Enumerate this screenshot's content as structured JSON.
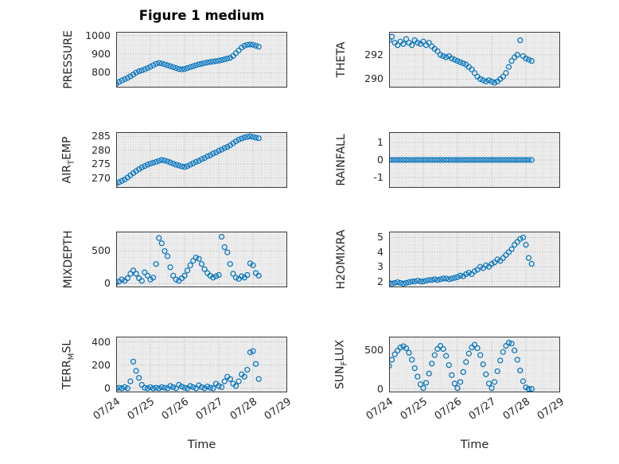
{
  "figure": {
    "title": "Figure 1 medium",
    "xlabel": "Time",
    "colors": {
      "marker": "#0072BD",
      "panel_bg": "#ececec",
      "minor_grid": "#d6d6d6",
      "major_grid": "#b0b0b0",
      "axis": "#3b3b3b",
      "text": "#262626"
    }
  },
  "chart_data": [
    {
      "type": "scatter",
      "name": "pressure",
      "ylabel": "PRESSURE",
      "ylabel_parts": [
        {
          "t": "PRESSURE",
          "sub": false
        }
      ],
      "xlim": [
        0,
        5
      ],
      "ylim": [
        720,
        1020
      ],
      "xticks": [
        0,
        1,
        2,
        3,
        4,
        5
      ],
      "xtick_labels": [
        "07/24",
        "07/25",
        "07/26",
        "07/27",
        "07/28",
        "07/29"
      ],
      "yticks": [
        800,
        900,
        1000
      ],
      "minor_x_step": 0.25,
      "minor_y_step": 25,
      "show_xtick_labels": false,
      "x": [
        0,
        0.083,
        0.167,
        0.25,
        0.333,
        0.417,
        0.5,
        0.583,
        0.667,
        0.75,
        0.833,
        0.917,
        1,
        1.083,
        1.167,
        1.25,
        1.333,
        1.417,
        1.5,
        1.583,
        1.667,
        1.75,
        1.833,
        1.917,
        2,
        2.083,
        2.167,
        2.25,
        2.333,
        2.417,
        2.5,
        2.583,
        2.667,
        2.75,
        2.833,
        2.917,
        3,
        3.083,
        3.167,
        3.25,
        3.333,
        3.417,
        3.5,
        3.583,
        3.667,
        3.75,
        3.833,
        3.917,
        4,
        4.083,
        4.167
      ],
      "y": [
        740,
        750,
        758,
        765,
        772,
        780,
        790,
        800,
        808,
        812,
        818,
        825,
        832,
        840,
        848,
        852,
        850,
        845,
        840,
        835,
        830,
        825,
        820,
        818,
        820,
        825,
        830,
        835,
        840,
        845,
        848,
        852,
        855,
        858,
        860,
        862,
        865,
        868,
        872,
        876,
        880,
        890,
        905,
        920,
        935,
        945,
        950,
        952,
        950,
        945,
        940
      ]
    },
    {
      "type": "scatter",
      "name": "theta",
      "ylabel": "THETA",
      "ylabel_parts": [
        {
          "t": "THETA",
          "sub": false
        }
      ],
      "xlim": [
        0,
        5
      ],
      "ylim": [
        289.3,
        293.9
      ],
      "xticks": [
        0,
        1,
        2,
        3,
        4,
        5
      ],
      "xtick_labels": [
        "07/24",
        "07/25",
        "07/26",
        "07/27",
        "07/28",
        "07/29"
      ],
      "yticks": [
        290,
        292
      ],
      "minor_x_step": 0.25,
      "minor_y_step": 0.5,
      "show_xtick_labels": false,
      "x": [
        0,
        0.083,
        0.167,
        0.25,
        0.333,
        0.417,
        0.5,
        0.583,
        0.667,
        0.75,
        0.833,
        0.917,
        1,
        1.083,
        1.167,
        1.25,
        1.333,
        1.417,
        1.5,
        1.583,
        1.667,
        1.75,
        1.833,
        1.917,
        2,
        2.083,
        2.167,
        2.25,
        2.333,
        2.417,
        2.5,
        2.583,
        2.667,
        2.75,
        2.833,
        2.917,
        3,
        3.083,
        3.167,
        3.25,
        3.333,
        3.417,
        3.5,
        3.583,
        3.667,
        3.75,
        3.833,
        3.917,
        4,
        4.083,
        4.167
      ],
      "y": [
        293.2,
        293.5,
        293,
        292.8,
        293.1,
        292.9,
        293.3,
        293,
        292.8,
        293.2,
        293,
        292.9,
        293.1,
        292.8,
        293,
        292.7,
        292.5,
        292.3,
        292,
        291.9,
        291.8,
        291.9,
        291.7,
        291.6,
        291.5,
        291.4,
        291.3,
        291.2,
        291,
        290.8,
        290.5,
        290.2,
        290,
        289.9,
        289.8,
        289.9,
        289.8,
        289.7,
        289.8,
        290,
        290.2,
        290.5,
        291,
        291.5,
        291.8,
        292,
        293.2,
        291.9,
        291.7,
        291.6,
        291.5
      ]
    },
    {
      "type": "scatter",
      "name": "air_temp",
      "ylabel": "AIR_TEMP",
      "ylabel_parts": [
        {
          "t": "AIR",
          "sub": false
        },
        {
          "t": "T",
          "sub": true
        },
        {
          "t": "EMP",
          "sub": false
        }
      ],
      "xlim": [
        0,
        5
      ],
      "ylim": [
        266.5,
        286.5
      ],
      "xticks": [
        0,
        1,
        2,
        3,
        4,
        5
      ],
      "xtick_labels": [
        "07/24",
        "07/25",
        "07/26",
        "07/27",
        "07/28",
        "07/29"
      ],
      "yticks": [
        270,
        275,
        280,
        285
      ],
      "minor_x_step": 0.25,
      "minor_y_step": 1,
      "show_xtick_labels": false,
      "x": [
        0,
        0.083,
        0.167,
        0.25,
        0.333,
        0.417,
        0.5,
        0.583,
        0.667,
        0.75,
        0.833,
        0.917,
        1,
        1.083,
        1.167,
        1.25,
        1.333,
        1.417,
        1.5,
        1.583,
        1.667,
        1.75,
        1.833,
        1.917,
        2,
        2.083,
        2.167,
        2.25,
        2.333,
        2.417,
        2.5,
        2.583,
        2.667,
        2.75,
        2.833,
        2.917,
        3,
        3.083,
        3.167,
        3.25,
        3.333,
        3.417,
        3.5,
        3.583,
        3.667,
        3.75,
        3.833,
        3.917,
        4,
        4.083,
        4.167
      ],
      "y": [
        268,
        268.5,
        269,
        269.5,
        270.2,
        271,
        271.8,
        272.5,
        273.2,
        273.8,
        274.3,
        274.8,
        275.2,
        275.5,
        275.8,
        276.2,
        276.5,
        276.3,
        276,
        275.6,
        275.2,
        274.8,
        274.5,
        274.2,
        274,
        274.3,
        274.8,
        275.3,
        275.8,
        276.2,
        276.8,
        277.2,
        277.8,
        278.2,
        278.8,
        279.2,
        279.8,
        280.2,
        280.8,
        281.2,
        281.8,
        282.5,
        283.2,
        283.8,
        284.2,
        284.6,
        284.8,
        285,
        284.8,
        284.5,
        284.3
      ]
    },
    {
      "type": "scatter",
      "name": "rainfall",
      "ylabel": "RAINFALL",
      "ylabel_parts": [
        {
          "t": "RAINFALL",
          "sub": false
        }
      ],
      "xlim": [
        0,
        5
      ],
      "ylim": [
        -1.6,
        1.6
      ],
      "xticks": [
        0,
        1,
        2,
        3,
        4,
        5
      ],
      "xtick_labels": [
        "07/24",
        "07/25",
        "07/26",
        "07/27",
        "07/28",
        "07/29"
      ],
      "yticks": [
        -1,
        0,
        1
      ],
      "minor_x_step": 0.25,
      "minor_y_step": 0.25,
      "show_xtick_labels": false,
      "x": [
        0,
        0.083,
        0.167,
        0.25,
        0.333,
        0.417,
        0.5,
        0.583,
        0.667,
        0.75,
        0.833,
        0.917,
        1,
        1.083,
        1.167,
        1.25,
        1.333,
        1.417,
        1.5,
        1.583,
        1.667,
        1.75,
        1.833,
        1.917,
        2,
        2.083,
        2.167,
        2.25,
        2.333,
        2.417,
        2.5,
        2.583,
        2.667,
        2.75,
        2.833,
        2.917,
        3,
        3.083,
        3.167,
        3.25,
        3.333,
        3.417,
        3.5,
        3.583,
        3.667,
        3.75,
        3.833,
        3.917,
        4,
        4.083,
        4.167
      ],
      "y": [
        0,
        0,
        0,
        0,
        0,
        0,
        0,
        0,
        0,
        0,
        0,
        0,
        0,
        0,
        0,
        0,
        0,
        0,
        0,
        0,
        0,
        0,
        0,
        0,
        0,
        0,
        0,
        0,
        0,
        0,
        0,
        0,
        0,
        0,
        0,
        0,
        0,
        0,
        0,
        0,
        0,
        0,
        0,
        0,
        0,
        0,
        0,
        0,
        0,
        0,
        0
      ]
    },
    {
      "type": "scatter",
      "name": "mixdepth",
      "ylabel": "MIXDEPTH",
      "ylabel_parts": [
        {
          "t": "MIXDEPTH",
          "sub": false
        }
      ],
      "xlim": [
        0,
        5
      ],
      "ylim": [
        -60,
        800
      ],
      "xticks": [
        0,
        1,
        2,
        3,
        4,
        5
      ],
      "xtick_labels": [
        "07/24",
        "07/25",
        "07/26",
        "07/27",
        "07/28",
        "07/29"
      ],
      "yticks": [
        0,
        500
      ],
      "minor_x_step": 0.25,
      "minor_y_step": 100,
      "show_xtick_labels": false,
      "x": [
        0,
        0.083,
        0.167,
        0.25,
        0.333,
        0.417,
        0.5,
        0.583,
        0.667,
        0.75,
        0.833,
        0.917,
        1,
        1.083,
        1.167,
        1.25,
        1.333,
        1.417,
        1.5,
        1.583,
        1.667,
        1.75,
        1.833,
        1.917,
        2,
        2.083,
        2.167,
        2.25,
        2.333,
        2.417,
        2.5,
        2.583,
        2.667,
        2.75,
        2.833,
        2.917,
        3,
        3.083,
        3.167,
        3.25,
        3.333,
        3.417,
        3.5,
        3.583,
        3.667,
        3.75,
        3.833,
        3.917,
        4,
        4.083,
        4.167
      ],
      "y": [
        10,
        30,
        60,
        40,
        80,
        150,
        200,
        150,
        80,
        40,
        170,
        120,
        60,
        90,
        300,
        700,
        620,
        500,
        420,
        250,
        120,
        60,
        40,
        80,
        120,
        200,
        280,
        350,
        400,
        380,
        300,
        220,
        160,
        120,
        90,
        110,
        130,
        720,
        560,
        480,
        300,
        150,
        90,
        70,
        110,
        90,
        130,
        310,
        280,
        160,
        120
      ]
    },
    {
      "type": "scatter",
      "name": "h2omixra",
      "ylabel": "H2OMIXRA",
      "ylabel_parts": [
        {
          "t": "H2OMIXRA",
          "sub": false
        }
      ],
      "xlim": [
        0,
        5
      ],
      "ylim": [
        1.6,
        5.4
      ],
      "xticks": [
        0,
        1,
        2,
        3,
        4,
        5
      ],
      "xtick_labels": [
        "07/24",
        "07/25",
        "07/26",
        "07/27",
        "07/28",
        "07/29"
      ],
      "yticks": [
        2,
        3,
        4,
        5
      ],
      "minor_x_step": 0.25,
      "minor_y_step": 0.25,
      "show_xtick_labels": false,
      "x": [
        0,
        0.083,
        0.167,
        0.25,
        0.333,
        0.417,
        0.5,
        0.583,
        0.667,
        0.75,
        0.833,
        0.917,
        1,
        1.083,
        1.167,
        1.25,
        1.333,
        1.417,
        1.5,
        1.583,
        1.667,
        1.75,
        1.833,
        1.917,
        2,
        2.083,
        2.167,
        2.25,
        2.333,
        2.417,
        2.5,
        2.583,
        2.667,
        2.75,
        2.833,
        2.917,
        3,
        3.083,
        3.167,
        3.25,
        3.333,
        3.417,
        3.5,
        3.583,
        3.667,
        3.75,
        3.833,
        3.917,
        4,
        4.083,
        4.167
      ],
      "y": [
        1.9,
        1.85,
        1.9,
        1.95,
        1.9,
        1.85,
        1.9,
        1.95,
        2,
        2,
        2.05,
        2,
        2,
        2.05,
        2.1,
        2.1,
        2.15,
        2.1,
        2.15,
        2.2,
        2.2,
        2.15,
        2.2,
        2.25,
        2.3,
        2.4,
        2.35,
        2.5,
        2.6,
        2.5,
        2.7,
        2.8,
        3,
        2.9,
        3.1,
        3,
        3.2,
        3.3,
        3.5,
        3.4,
        3.6,
        3.8,
        4,
        4.2,
        4.5,
        4.7,
        4.9,
        5,
        4.5,
        3.6,
        3.2
      ]
    },
    {
      "type": "scatter",
      "name": "terr_msl",
      "ylabel": "TERR_MSL",
      "ylabel_parts": [
        {
          "t": "TERR",
          "sub": false
        },
        {
          "t": "M",
          "sub": true
        },
        {
          "t": "SL",
          "sub": false
        }
      ],
      "xlim": [
        0,
        5
      ],
      "ylim": [
        -35,
        445
      ],
      "xticks": [
        0,
        1,
        2,
        3,
        4,
        5
      ],
      "xtick_labels": [
        "07/24",
        "07/25",
        "07/26",
        "07/27",
        "07/28",
        "07/29"
      ],
      "yticks": [
        0,
        200,
        400
      ],
      "minor_x_step": 0.25,
      "minor_y_step": 50,
      "show_xtick_labels": true,
      "x": [
        0,
        0.083,
        0.167,
        0.25,
        0.333,
        0.417,
        0.5,
        0.583,
        0.667,
        0.75,
        0.833,
        0.917,
        1,
        1.083,
        1.167,
        1.25,
        1.333,
        1.417,
        1.5,
        1.583,
        1.667,
        1.75,
        1.833,
        1.917,
        2,
        2.083,
        2.167,
        2.25,
        2.333,
        2.417,
        2.5,
        2.583,
        2.667,
        2.75,
        2.833,
        2.917,
        3,
        3.083,
        3.167,
        3.25,
        3.333,
        3.417,
        3.5,
        3.583,
        3.667,
        3.75,
        3.833,
        3.917,
        4,
        4.083,
        4.167
      ],
      "y": [
        0,
        5,
        0,
        10,
        0,
        60,
        230,
        150,
        90,
        30,
        5,
        0,
        10,
        0,
        5,
        0,
        10,
        5,
        0,
        20,
        10,
        0,
        30,
        15,
        5,
        0,
        20,
        10,
        0,
        25,
        10,
        0,
        15,
        5,
        0,
        40,
        20,
        10,
        60,
        100,
        80,
        40,
        20,
        60,
        120,
        100,
        160,
        310,
        320,
        210,
        80
      ]
    },
    {
      "type": "scatter",
      "name": "sun_flux",
      "ylabel": "SUN_FLUX",
      "ylabel_parts": [
        {
          "t": "SUN",
          "sub": false
        },
        {
          "t": "F",
          "sub": true
        },
        {
          "t": "LUX",
          "sub": false
        }
      ],
      "xlim": [
        0,
        5
      ],
      "ylim": [
        -45,
        680
      ],
      "xticks": [
        0,
        1,
        2,
        3,
        4,
        5
      ],
      "xtick_labels": [
        "07/24",
        "07/25",
        "07/26",
        "07/27",
        "07/28",
        "07/29"
      ],
      "yticks": [
        0,
        500
      ],
      "minor_x_step": 0.25,
      "minor_y_step": 100,
      "show_xtick_labels": true,
      "x": [
        0,
        0.083,
        0.167,
        0.25,
        0.333,
        0.417,
        0.5,
        0.583,
        0.667,
        0.75,
        0.833,
        0.917,
        1,
        1.083,
        1.167,
        1.25,
        1.333,
        1.417,
        1.5,
        1.583,
        1.667,
        1.75,
        1.833,
        1.917,
        2,
        2.083,
        2.167,
        2.25,
        2.333,
        2.417,
        2.5,
        2.583,
        2.667,
        2.75,
        2.833,
        2.917,
        3,
        3.083,
        3.167,
        3.25,
        3.333,
        3.417,
        3.5,
        3.583,
        3.667,
        3.75,
        3.833,
        3.917,
        4,
        4.083,
        4.167
      ],
      "y": [
        300,
        380,
        450,
        500,
        540,
        555,
        530,
        470,
        380,
        270,
        160,
        60,
        10,
        80,
        200,
        330,
        440,
        520,
        560,
        520,
        430,
        310,
        180,
        70,
        10,
        90,
        220,
        350,
        460,
        540,
        575,
        530,
        440,
        320,
        190,
        70,
        10,
        90,
        230,
        370,
        480,
        560,
        600,
        590,
        500,
        380,
        240,
        100,
        20,
        0,
        0
      ]
    }
  ]
}
